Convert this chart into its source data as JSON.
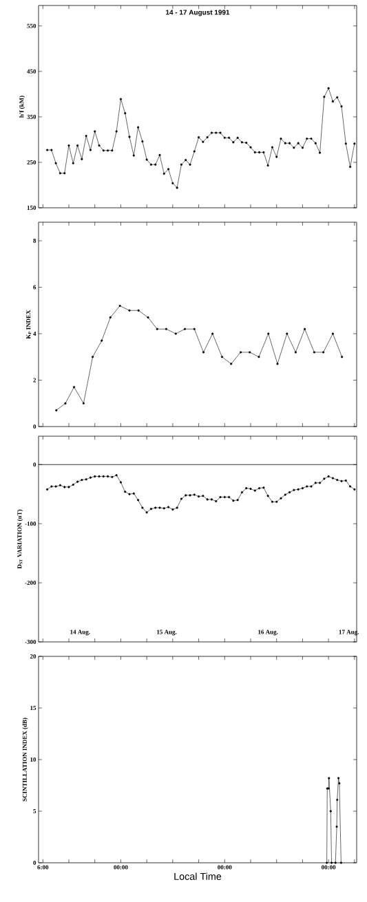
{
  "chart_data": [
    {
      "type": "line",
      "title": "14 - 17 August 1991",
      "ylabel": "h'f (kM)",
      "marker": "circle",
      "line_style": "solid",
      "tick_labels": "y",
      "xlim": [
        "1991-08-14T05:00",
        "1991-08-17T06:30"
      ],
      "ylim": [
        150,
        595
      ],
      "xticks": [
        {
          "value": "1991-08-14T06:00",
          "label": null
        },
        {
          "value": "1991-08-14T12:00",
          "label": null
        },
        {
          "value": "1991-08-14T18:00",
          "label": null
        },
        {
          "value": "1991-08-15T00:00",
          "label": null
        },
        {
          "value": "1991-08-15T06:00",
          "label": null
        },
        {
          "value": "1991-08-15T12:00",
          "label": null
        },
        {
          "value": "1991-08-15T18:00",
          "label": null
        },
        {
          "value": "1991-08-16T00:00",
          "label": null
        },
        {
          "value": "1991-08-16T06:00",
          "label": null
        },
        {
          "value": "1991-08-16T12:00",
          "label": null
        },
        {
          "value": "1991-08-16T18:00",
          "label": null
        },
        {
          "value": "1991-08-17T00:00",
          "label": null
        },
        {
          "value": "1991-08-17T06:00",
          "label": null
        }
      ],
      "yticks": [
        150,
        250,
        350,
        450,
        550
      ],
      "x": [
        "1991-08-14T07:00",
        "1991-08-14T08:00",
        "1991-08-14T09:00",
        "1991-08-14T10:00",
        "1991-08-14T11:00",
        "1991-08-14T12:00",
        "1991-08-14T13:00",
        "1991-08-14T14:00",
        "1991-08-14T15:00",
        "1991-08-14T16:00",
        "1991-08-14T17:00",
        "1991-08-14T18:00",
        "1991-08-14T19:00",
        "1991-08-14T20:00",
        "1991-08-14T21:00",
        "1991-08-14T22:00",
        "1991-08-14T23:00",
        "1991-08-15T00:00",
        "1991-08-15T01:00",
        "1991-08-15T02:00",
        "1991-08-15T03:00",
        "1991-08-15T04:00",
        "1991-08-15T05:00",
        "1991-08-15T06:00",
        "1991-08-15T07:00",
        "1991-08-15T08:00",
        "1991-08-15T09:00",
        "1991-08-15T10:00",
        "1991-08-15T11:00",
        "1991-08-15T12:00",
        "1991-08-15T13:00",
        "1991-08-15T14:00",
        "1991-08-15T15:00",
        "1991-08-15T16:00",
        "1991-08-15T17:00",
        "1991-08-15T18:00",
        "1991-08-15T19:00",
        "1991-08-15T20:00",
        "1991-08-15T21:00",
        "1991-08-15T22:00",
        "1991-08-15T23:00",
        "1991-08-16T00:00",
        "1991-08-16T01:00",
        "1991-08-16T02:00",
        "1991-08-16T03:00",
        "1991-08-16T04:00",
        "1991-08-16T05:00",
        "1991-08-16T06:00",
        "1991-08-16T07:00",
        "1991-08-16T08:00",
        "1991-08-16T09:00",
        "1991-08-16T10:00",
        "1991-08-16T11:00",
        "1991-08-16T12:00",
        "1991-08-16T13:00",
        "1991-08-16T14:00",
        "1991-08-16T15:00",
        "1991-08-16T16:00",
        "1991-08-16T17:00",
        "1991-08-16T18:00",
        "1991-08-16T19:00",
        "1991-08-16T20:00",
        "1991-08-16T21:00",
        "1991-08-16T22:00",
        "1991-08-16T23:00",
        "1991-08-17T00:00",
        "1991-08-17T01:00",
        "1991-08-17T02:00",
        "1991-08-17T03:00",
        "1991-08-17T04:00",
        "1991-08-17T05:00",
        "1991-08-17T06:00"
      ],
      "series": [
        {
          "color": "#000000",
          "values": [
            277,
            277,
            248,
            226,
            226,
            287,
            248,
            287,
            257,
            308,
            277,
            318,
            287,
            276,
            276,
            276,
            318,
            389,
            358,
            306,
            265,
            327,
            296,
            256,
            245,
            245,
            266,
            225,
            235,
            204,
            194,
            245,
            255,
            245,
            274,
            305,
            295,
            305,
            315,
            315,
            315,
            304,
            304,
            294,
            304,
            294,
            293,
            283,
            272,
            272,
            272,
            243,
            283,
            262,
            302,
            292,
            292,
            282,
            292,
            282,
            302,
            302,
            292,
            271,
            394,
            413,
            384,
            393,
            373,
            291,
            240,
            291
          ]
        }
      ]
    },
    {
      "type": "line",
      "ylabel": "K$_{P}$ INDEX",
      "marker": "circle",
      "line_style": "solid",
      "tick_labels": "y",
      "xlim": [
        "1991-08-14T05:00",
        "1991-08-17T06:30"
      ],
      "ylim": [
        0,
        8.8
      ],
      "xticks": [
        {
          "value": "1991-08-14T06:00",
          "label": null
        },
        {
          "value": "1991-08-14T12:00",
          "label": null
        },
        {
          "value": "1991-08-14T18:00",
          "label": null
        },
        {
          "value": "1991-08-15T00:00",
          "label": null
        },
        {
          "value": "1991-08-15T06:00",
          "label": null
        },
        {
          "value": "1991-08-15T12:00",
          "label": null
        },
        {
          "value": "1991-08-15T18:00",
          "label": null
        },
        {
          "value": "1991-08-16T00:00",
          "label": null
        },
        {
          "value": "1991-08-16T06:00",
          "label": null
        },
        {
          "value": "1991-08-16T12:00",
          "label": null
        },
        {
          "value": "1991-08-16T18:00",
          "label": null
        },
        {
          "value": "1991-08-17T00:00",
          "label": null
        },
        {
          "value": "1991-08-17T06:00",
          "label": null
        }
      ],
      "yticks": [
        0,
        2,
        4,
        6,
        8
      ],
      "series": [
        {
          "color": "#000000",
          "x": [
            "1991-08-14T09:06",
            "1991-08-14T11:12",
            "1991-08-14T13:12",
            "1991-08-14T15:24",
            "1991-08-14T17:30",
            "1991-08-14T19:36",
            "1991-08-14T21:36",
            "1991-08-14T23:48",
            "1991-08-15T02:00",
            "1991-08-15T04:06",
            "1991-08-15T06:18",
            "1991-08-15T08:24",
            "1991-08-15T10:30",
            "1991-08-15T12:42",
            "1991-08-15T14:48",
            "1991-08-15T17:00",
            "1991-08-15T19:06",
            "1991-08-15T21:12",
            "1991-08-15T23:24",
            "1991-08-16T01:30",
            "1991-08-16T03:42",
            "1991-08-16T05:48",
            "1991-08-16T07:54",
            "1991-08-16T10:06",
            "1991-08-16T12:12",
            "1991-08-16T14:24",
            "1991-08-16T16:24",
            "1991-08-16T18:30",
            "1991-08-16T20:42",
            "1991-08-16T22:48",
            "1991-08-17T01:00",
            "1991-08-17T03:06"
          ],
          "values": [
            0.7,
            1.0,
            1.7,
            1.0,
            3.0,
            3.7,
            4.7,
            5.2,
            5.0,
            5.0,
            4.7,
            4.2,
            4.2,
            4.0,
            4.2,
            4.2,
            3.2,
            4.0,
            3.0,
            2.7,
            3.2,
            3.2,
            3.0,
            4.0,
            2.7,
            4.0,
            3.2,
            4.2,
            3.2,
            3.2,
            4.0,
            3.0
          ]
        }
      ]
    },
    {
      "type": "line",
      "ylabel": "D$_{ST}$ VARIATION (nT)",
      "marker": "circle",
      "line_style": "solid",
      "xlim": [
        "1991-08-14T05:00",
        "1991-08-17T06:30"
      ],
      "ylim": [
        -300,
        48
      ],
      "xticks": [
        {
          "value": "1991-08-14T06:00",
          "label": null
        },
        {
          "value": "1991-08-14T12:00",
          "label": null
        },
        {
          "value": "1991-08-14T18:00",
          "label": null
        },
        {
          "value": "1991-08-15T00:00",
          "label": null
        },
        {
          "value": "1991-08-15T06:00",
          "label": null
        },
        {
          "value": "1991-08-15T12:00",
          "label": null
        },
        {
          "value": "1991-08-15T18:00",
          "label": null
        },
        {
          "value": "1991-08-16T00:00",
          "label": null
        },
        {
          "value": "1991-08-16T06:00",
          "label": null
        },
        {
          "value": "1991-08-16T12:00",
          "label": null
        },
        {
          "value": "1991-08-16T18:00",
          "label": null
        },
        {
          "value": "1991-08-17T00:00",
          "label": null
        },
        {
          "value": "1991-08-17T06:00",
          "label": null
        },
        {
          "value": "1991-08-14T14:36",
          "label": "14 Aug."
        },
        {
          "value": "1991-08-15T10:36",
          "label": "15 Aug."
        },
        {
          "value": "1991-08-16T10:00",
          "label": "16 Aug."
        },
        {
          "value": "1991-08-17T04:42",
          "label": "17 Aug."
        }
      ],
      "yticks": [
        -300,
        -200,
        -100,
        0
      ],
      "ref_lines": [
        {
          "axis": "y",
          "value": 0,
          "color": "#000000"
        }
      ],
      "x": [
        "1991-08-14T07:00",
        "1991-08-14T08:00",
        "1991-08-14T09:00",
        "1991-08-14T10:00",
        "1991-08-14T11:00",
        "1991-08-14T12:00",
        "1991-08-14T13:00",
        "1991-08-14T14:00",
        "1991-08-14T15:00",
        "1991-08-14T16:00",
        "1991-08-14T17:00",
        "1991-08-14T18:00",
        "1991-08-14T19:00",
        "1991-08-14T20:00",
        "1991-08-14T21:00",
        "1991-08-14T22:00",
        "1991-08-14T23:00",
        "1991-08-15T00:00",
        "1991-08-15T01:00",
        "1991-08-15T02:00",
        "1991-08-15T03:00",
        "1991-08-15T04:00",
        "1991-08-15T05:00",
        "1991-08-15T06:00",
        "1991-08-15T07:00",
        "1991-08-15T08:00",
        "1991-08-15T09:00",
        "1991-08-15T10:00",
        "1991-08-15T11:00",
        "1991-08-15T12:00",
        "1991-08-15T13:00",
        "1991-08-15T14:00",
        "1991-08-15T15:00",
        "1991-08-15T16:00",
        "1991-08-15T17:00",
        "1991-08-15T18:00",
        "1991-08-15T19:00",
        "1991-08-15T20:00",
        "1991-08-15T21:00",
        "1991-08-15T22:00",
        "1991-08-15T23:00",
        "1991-08-16T00:00",
        "1991-08-16T01:00",
        "1991-08-16T02:00",
        "1991-08-16T03:00",
        "1991-08-16T04:00",
        "1991-08-16T05:00",
        "1991-08-16T06:00",
        "1991-08-16T07:00",
        "1991-08-16T08:00",
        "1991-08-16T09:00",
        "1991-08-16T10:00",
        "1991-08-16T11:00",
        "1991-08-16T12:00",
        "1991-08-16T13:00",
        "1991-08-16T14:00",
        "1991-08-16T15:00",
        "1991-08-16T16:00",
        "1991-08-16T17:00",
        "1991-08-16T18:00",
        "1991-08-16T19:00",
        "1991-08-16T20:00",
        "1991-08-16T21:00",
        "1991-08-16T22:00",
        "1991-08-16T23:00",
        "1991-08-17T00:00",
        "1991-08-17T01:00",
        "1991-08-17T02:00",
        "1991-08-17T03:00",
        "1991-08-17T04:00",
        "1991-08-17T05:00",
        "1991-08-17T06:00"
      ],
      "series": [
        {
          "color": "#000000",
          "values": [
            -42,
            -37,
            -37,
            -35,
            -38,
            -38,
            -34,
            -29,
            -26,
            -25,
            -22,
            -20,
            -20,
            -20,
            -20,
            -21,
            -18,
            -30,
            -46,
            -50,
            -49,
            -60,
            -73,
            -81,
            -75,
            -73,
            -73,
            -74,
            -72,
            -76,
            -73,
            -58,
            -52,
            -52,
            -51,
            -54,
            -53,
            -59,
            -59,
            -62,
            -55,
            -55,
            -55,
            -61,
            -60,
            -47,
            -40,
            -41,
            -44,
            -40,
            -39,
            -53,
            -63,
            -63,
            -57,
            -51,
            -47,
            -43,
            -42,
            -40,
            -37,
            -37,
            -31,
            -31,
            -24,
            -20,
            -23,
            -26,
            -28,
            -27,
            -37,
            -42
          ]
        }
      ]
    },
    {
      "type": "line",
      "ylabel": "SCINTILLATION INDEX (dB)",
      "xlabel": "Local Time",
      "marker": "circle",
      "line_style": "solid",
      "xlim": [
        "1991-08-14T05:00",
        "1991-08-17T06:30"
      ],
      "ylim": [
        0,
        20
      ],
      "xticks": [
        {
          "value": "1991-08-14T06:00",
          "label": "6:00"
        },
        {
          "value": "1991-08-14T12:00",
          "label": null
        },
        {
          "value": "1991-08-14T18:00",
          "label": null
        },
        {
          "value": "1991-08-15T00:00",
          "label": "00:00"
        },
        {
          "value": "1991-08-15T06:00",
          "label": null
        },
        {
          "value": "1991-08-15T12:00",
          "label": null
        },
        {
          "value": "1991-08-15T18:00",
          "label": null
        },
        {
          "value": "1991-08-16T00:00",
          "label": "00:00"
        },
        {
          "value": "1991-08-16T06:00",
          "label": null
        },
        {
          "value": "1991-08-16T12:00",
          "label": null
        },
        {
          "value": "1991-08-16T18:00",
          "label": null
        },
        {
          "value": "1991-08-17T00:00",
          "label": "00:00"
        },
        {
          "value": "1991-08-17T06:00",
          "label": null
        }
      ],
      "yticks": [
        0,
        5,
        10,
        15,
        20
      ],
      "series": [
        {
          "color": "#000000",
          "x": [
            "1991-08-16T23:36",
            "1991-08-16T23:42",
            "1991-08-17T00:00",
            "1991-08-17T00:06",
            "1991-08-17T00:30",
            "1991-08-17T00:42",
            "1991-08-17T01:36",
            "1991-08-17T01:54",
            "1991-08-17T02:00",
            "1991-08-17T02:18",
            "1991-08-17T02:30",
            "1991-08-17T02:54"
          ],
          "values": [
            0,
            7.2,
            7.2,
            8.2,
            5.0,
            0,
            0,
            3.5,
            6.1,
            8.2,
            7.7,
            0
          ]
        }
      ]
    }
  ]
}
